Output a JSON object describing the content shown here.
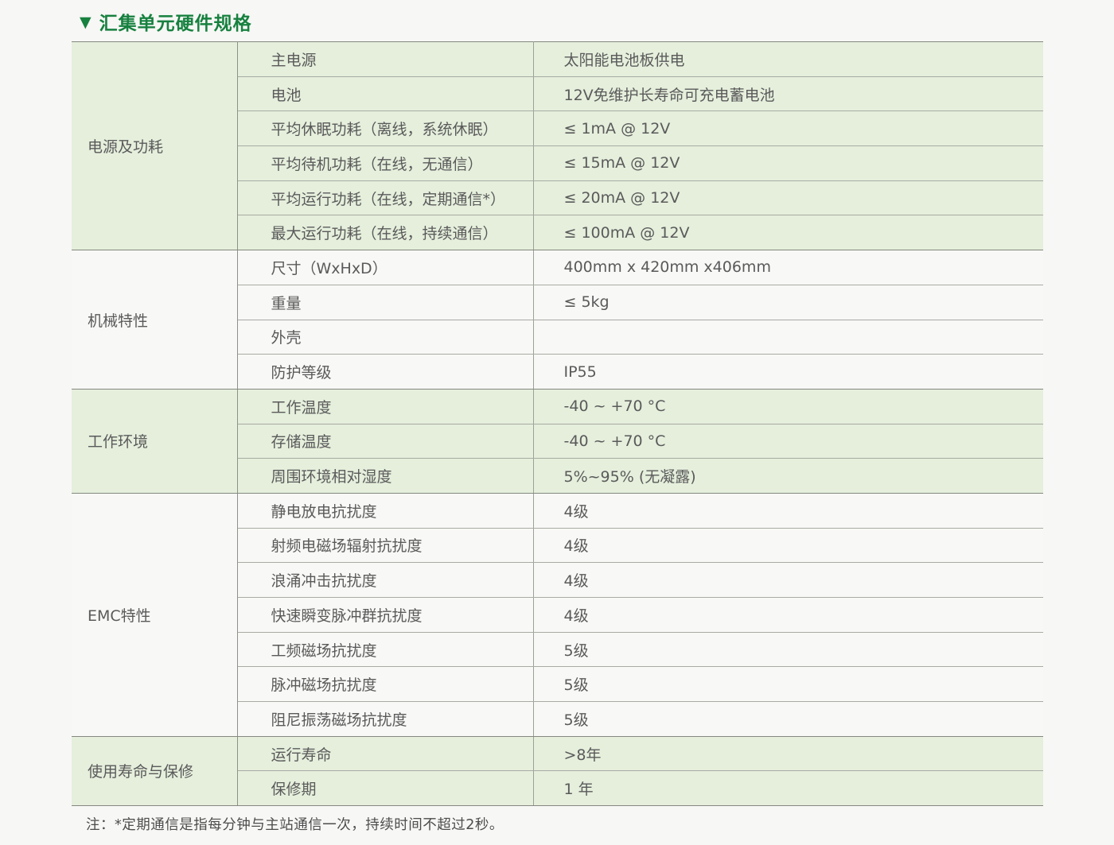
{
  "title": {
    "marker": "▼",
    "text": "汇集单元硬件规格"
  },
  "colors": {
    "accent_green": "#17813f",
    "row_green": "#e5efdc",
    "row_white": "#f8f8f6",
    "page_background": "#f7f7f5",
    "text_gray": "#5a5a5a"
  },
  "table": {
    "sections": [
      {
        "category": "电源及功耗",
        "tone": "green",
        "rows": [
          {
            "param": "主电源",
            "value": "太阳能电池板供电"
          },
          {
            "param": "电池",
            "value": "12V免维护长寿命可充电蓄电池"
          },
          {
            "param": "平均休眠功耗（离线，系统休眠）",
            "value": "≤ 1mA @ 12V"
          },
          {
            "param": "平均待机功耗（在线，无通信）",
            "value": "≤ 15mA @ 12V"
          },
          {
            "param": "平均运行功耗（在线，定期通信*）",
            "value": "≤ 20mA @ 12V"
          },
          {
            "param": "最大运行功耗（在线，持续通信）",
            "value": "≤ 100mA @ 12V"
          }
        ]
      },
      {
        "category": "机械特性",
        "tone": "white",
        "rows": [
          {
            "param": "尺寸（WxHxD）",
            "value": "400mm x 420mm x406mm"
          },
          {
            "param": "重量",
            "value": "≤ 5kg"
          },
          {
            "param": "外壳",
            "value": ""
          },
          {
            "param": "防护等级",
            "value": "IP55"
          }
        ]
      },
      {
        "category": "工作环境",
        "tone": "green",
        "rows": [
          {
            "param": "工作温度",
            "value": "-40 ~ +70 °C"
          },
          {
            "param": "存储温度",
            "value": "-40 ~ +70 °C"
          },
          {
            "param": "周围环境相对湿度",
            "value": "5%~95% (无凝露)"
          }
        ]
      },
      {
        "category": "EMC特性",
        "tone": "white",
        "rows": [
          {
            "param": "静电放电抗扰度",
            "value": "4级"
          },
          {
            "param": "射频电磁场辐射抗扰度",
            "value": "4级"
          },
          {
            "param": "浪涌冲击抗扰度",
            "value": "4级"
          },
          {
            "param": "快速瞬变脉冲群抗扰度",
            "value": "4级"
          },
          {
            "param": "工频磁场抗扰度",
            "value": "5级"
          },
          {
            "param": "脉冲磁场抗扰度",
            "value": "5级"
          },
          {
            "param": "阻尼振荡磁场抗扰度",
            "value": "5级"
          }
        ]
      },
      {
        "category": "使用寿命与保修",
        "tone": "green",
        "rows": [
          {
            "param": "运行寿命",
            "value": ">8年"
          },
          {
            "param": "保修期",
            "value": "1 年"
          }
        ]
      }
    ]
  },
  "footnote": "注：*定期通信是指每分钟与主站通信一次，持续时间不超过2秒。"
}
